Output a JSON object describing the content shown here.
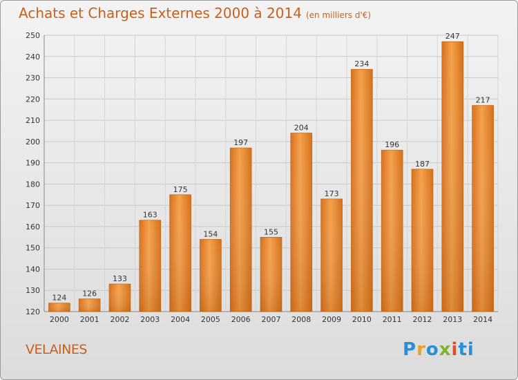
{
  "chart_data": {
    "type": "bar",
    "title": "Achats et Charges Externes 2000 à 2014",
    "subtitle": "(en milliers d'€)",
    "categories": [
      "2000",
      "2001",
      "2002",
      "2003",
      "2004",
      "2005",
      "2006",
      "2007",
      "2008",
      "2009",
      "2010",
      "2011",
      "2012",
      "2013",
      "2014"
    ],
    "values": [
      124,
      126,
      133,
      163,
      175,
      154,
      197,
      155,
      204,
      173,
      234,
      196,
      187,
      247,
      217
    ],
    "ylim": [
      120,
      250
    ],
    "yticks": [
      120,
      130,
      140,
      150,
      160,
      170,
      180,
      190,
      200,
      210,
      220,
      230,
      240,
      250
    ],
    "grid": true,
    "bar_color": "#e8862a"
  },
  "footer": {
    "city": "VELAINES",
    "logo_letters": [
      "P",
      "r",
      "o",
      "x",
      "i",
      "ti"
    ]
  }
}
